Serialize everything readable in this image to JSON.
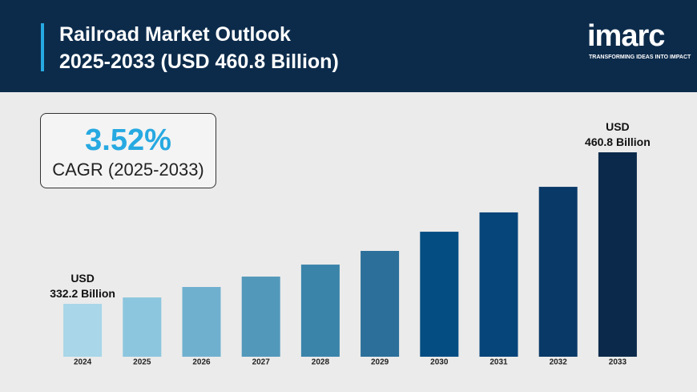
{
  "chart_data": {
    "type": "bar",
    "title": "Railroad Market Outlook\n2025-2033 (USD 460.8 Billion)",
    "brand": "imarc",
    "brand_tagline": "TRANSFORMING IDEAS INTO IMPACT",
    "cagr_value": "3.52%",
    "cagr_label": "CAGR (2025-2033)",
    "categories": [
      "2024",
      "2025",
      "2026",
      "2027",
      "2028",
      "2029",
      "2030",
      "2031",
      "2032",
      "2033"
    ],
    "values": [
      332.2,
      337.6,
      346.5,
      355.3,
      365.5,
      377.1,
      393.4,
      409.8,
      431.5,
      460.8
    ],
    "value_labels": [
      "USD\n332.2 Billion",
      null,
      null,
      null,
      null,
      null,
      null,
      null,
      null,
      "USD\n460.8 Billion"
    ],
    "colors": [
      "#a9d6e8",
      "#8cc6de",
      "#6fb0cf",
      "#5298bb",
      "#3a84aa",
      "#2c6f9a",
      "#034d83",
      "#064579",
      "#093967",
      "#0b2a4b"
    ],
    "ylim": [
      287.3,
      460.8
    ]
  }
}
